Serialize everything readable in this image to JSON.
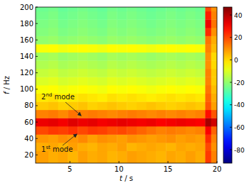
{
  "chart_data": {
    "type": "heatmap",
    "x_label": "t / s",
    "y_label": "f / Hz",
    "x": [
      1.5,
      2.8,
      3.8,
      4.8,
      5.8,
      6.8,
      7.8,
      8.8,
      9.8,
      10.8,
      11.8,
      12.8,
      13.8,
      14.8,
      15.8,
      16.8,
      17.8,
      18.8,
      19.4,
      20
    ],
    "y": [
      10,
      25,
      35,
      45,
      55,
      65,
      75,
      85,
      95,
      105,
      115,
      125,
      135,
      145,
      155,
      165,
      175,
      185,
      195,
      200
    ],
    "cells": [
      [
        8,
        6,
        7,
        5,
        8,
        6,
        7,
        5,
        6,
        8,
        7,
        6,
        5,
        7,
        6,
        8,
        6,
        22,
        12
      ],
      [
        6,
        7,
        5,
        8,
        6,
        5,
        7,
        6,
        8,
        5,
        6,
        7,
        6,
        5,
        7,
        6,
        7,
        20,
        10
      ],
      [
        9,
        8,
        10,
        9,
        11,
        8,
        10,
        9,
        8,
        10,
        9,
        8,
        9,
        10,
        8,
        9,
        8,
        24,
        12
      ],
      [
        20,
        22,
        21,
        23,
        20,
        22,
        21,
        19,
        20,
        18,
        16,
        14,
        12,
        13,
        12,
        11,
        12,
        30,
        16
      ],
      [
        32,
        33,
        31,
        34,
        32,
        33,
        31,
        32,
        33,
        32,
        31,
        32,
        30,
        31,
        32,
        31,
        30,
        42,
        36
      ],
      [
        12,
        13,
        11,
        14,
        12,
        13,
        12,
        11,
        12,
        13,
        12,
        11,
        12,
        11,
        12,
        11,
        12,
        28,
        18
      ],
      [
        2,
        3,
        1,
        2,
        3,
        1,
        2,
        3,
        2,
        1,
        2,
        3,
        2,
        1,
        2,
        3,
        2,
        18,
        8
      ],
      [
        -2,
        -1,
        -3,
        -2,
        -1,
        -2,
        -3,
        -1,
        -2,
        -1,
        -2,
        -3,
        -2,
        -1,
        -2,
        -1,
        -2,
        16,
        6
      ],
      [
        -6,
        -5,
        -7,
        -6,
        -5,
        -6,
        -7,
        -5,
        -6,
        -5,
        -6,
        -7,
        -6,
        -5,
        -6,
        -5,
        -6,
        14,
        4
      ],
      [
        -10,
        -9,
        -11,
        -10,
        -9,
        -10,
        -11,
        -9,
        -10,
        -9,
        -10,
        -11,
        -10,
        -9,
        -10,
        -9,
        -10,
        12,
        2
      ],
      [
        -13,
        -12,
        -14,
        -13,
        -12,
        -13,
        -14,
        -12,
        -13,
        -12,
        -13,
        -14,
        -13,
        -12,
        -13,
        -12,
        -13,
        12,
        2
      ],
      [
        -16,
        -15,
        -17,
        -16,
        -15,
        -16,
        -17,
        -15,
        -16,
        -15,
        -16,
        -17,
        -16,
        -15,
        -16,
        -15,
        -16,
        10,
        0
      ],
      [
        -18,
        -17,
        -19,
        -18,
        -17,
        -18,
        -19,
        -17,
        -18,
        -17,
        -18,
        -19,
        -18,
        -17,
        -18,
        -17,
        -18,
        10,
        0
      ],
      [
        -6,
        -5,
        -7,
        -6,
        -5,
        -6,
        -7,
        -5,
        -6,
        -5,
        -6,
        -7,
        -6,
        -5,
        -6,
        -5,
        -6,
        12,
        4
      ],
      [
        -20,
        -19,
        -21,
        -20,
        -19,
        -20,
        -21,
        -19,
        -20,
        -19,
        -20,
        -21,
        -20,
        -19,
        -20,
        -19,
        -20,
        14,
        6
      ],
      [
        -22,
        -21,
        -23,
        -22,
        -21,
        -22,
        -23,
        -21,
        -22,
        -21,
        -22,
        -23,
        -22,
        -21,
        -22,
        -21,
        -22,
        24,
        10
      ],
      [
        -23,
        -22,
        -24,
        -23,
        -22,
        -23,
        -24,
        -22,
        -23,
        -22,
        -23,
        -24,
        -23,
        -22,
        -23,
        -22,
        -23,
        32,
        14
      ],
      [
        -24,
        -23,
        -25,
        -24,
        -23,
        -24,
        -25,
        -23,
        -24,
        -23,
        -24,
        -25,
        -24,
        -23,
        -24,
        -23,
        -24,
        26,
        12
      ],
      [
        -25,
        -24,
        -26,
        -25,
        -24,
        -25,
        -26,
        -24,
        -25,
        -24,
        -25,
        -26,
        -25,
        -24,
        -25,
        -24,
        -25,
        20,
        10
      ]
    ],
    "xlim": [
      1.5,
      20
    ],
    "ylim": [
      10,
      200
    ],
    "xticks": [
      5,
      10,
      15,
      20
    ],
    "yticks": [
      20,
      40,
      60,
      80,
      100,
      120,
      140,
      160,
      180,
      200
    ],
    "color_range": [
      -92,
      47
    ],
    "color_ticks": [
      40,
      20,
      0,
      -20,
      -40,
      -60,
      -80
    ],
    "annotations": [
      "2nd mode",
      "1st mode"
    ]
  }
}
